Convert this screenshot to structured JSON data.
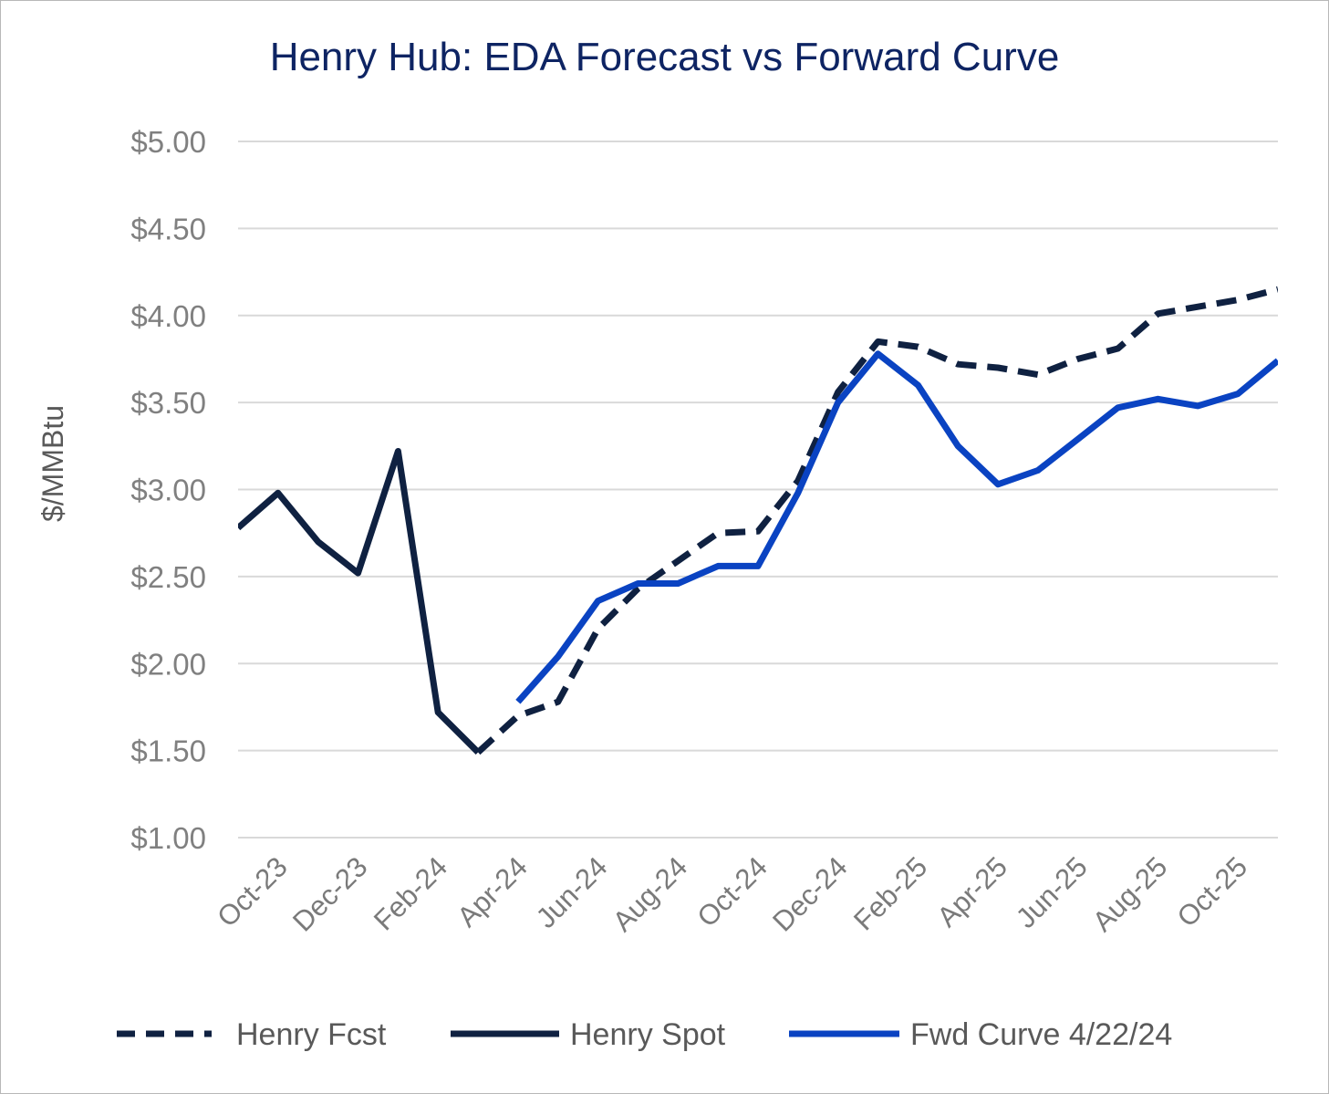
{
  "chart_data": {
    "type": "line",
    "title": "Henry Hub: EDA Forecast vs Forward Curve",
    "xlabel": "",
    "ylabel": "$/MMBtu",
    "ylim": [
      1.0,
      5.0
    ],
    "y_ticks": [
      "$1.00",
      "$1.50",
      "$2.00",
      "$2.50",
      "$3.00",
      "$3.50",
      "$4.00",
      "$4.50",
      "$5.00"
    ],
    "y_tick_values": [
      1.0,
      1.5,
      2.0,
      2.5,
      3.0,
      3.5,
      4.0,
      4.5,
      5.0
    ],
    "x": [
      "Sep-23",
      "Oct-23",
      "Nov-23",
      "Dec-23",
      "Jan-24",
      "Feb-24",
      "Mar-24",
      "Apr-24",
      "May-24",
      "Jun-24",
      "Jul-24",
      "Aug-24",
      "Sep-24",
      "Oct-24",
      "Nov-24",
      "Dec-24",
      "Jan-25",
      "Feb-25",
      "Mar-25",
      "Apr-25",
      "May-25",
      "Jun-25",
      "Jul-25",
      "Aug-25",
      "Sep-25",
      "Oct-25",
      "Nov-25"
    ],
    "x_tick_labels": [
      "Oct-23",
      "Dec-23",
      "Feb-24",
      "Apr-24",
      "Jun-24",
      "Aug-24",
      "Oct-24",
      "Dec-24",
      "Feb-25",
      "Apr-25",
      "Jun-25",
      "Aug-25",
      "Oct-25"
    ],
    "grid": true,
    "legend_position": "bottom",
    "series": [
      {
        "name": "Henry Fcst",
        "style": "dashed",
        "color": "#0f2141",
        "values": [
          null,
          null,
          null,
          null,
          null,
          null,
          1.49,
          1.7,
          1.78,
          2.2,
          2.43,
          2.59,
          2.75,
          2.76,
          3.05,
          3.56,
          3.85,
          3.82,
          3.72,
          3.7,
          3.66,
          3.75,
          3.81,
          4.01,
          4.05,
          4.09,
          4.15
        ]
      },
      {
        "name": "Henry Spot",
        "style": "solid",
        "color": "#0f2141",
        "values": [
          2.78,
          2.98,
          2.7,
          2.52,
          3.22,
          1.72,
          1.49,
          null,
          null,
          null,
          null,
          null,
          null,
          null,
          null,
          null,
          null,
          null,
          null,
          null,
          null,
          null,
          null,
          null,
          null,
          null,
          null
        ]
      },
      {
        "name": "Fwd Curve 4/22/24",
        "style": "solid",
        "color": "#0a43c2",
        "values": [
          null,
          null,
          null,
          null,
          null,
          null,
          null,
          1.78,
          2.04,
          2.36,
          2.46,
          2.46,
          2.56,
          2.56,
          2.98,
          3.5,
          3.78,
          3.6,
          3.25,
          3.03,
          3.11,
          3.29,
          3.47,
          3.52,
          3.48,
          3.55,
          3.74
        ]
      }
    ]
  }
}
